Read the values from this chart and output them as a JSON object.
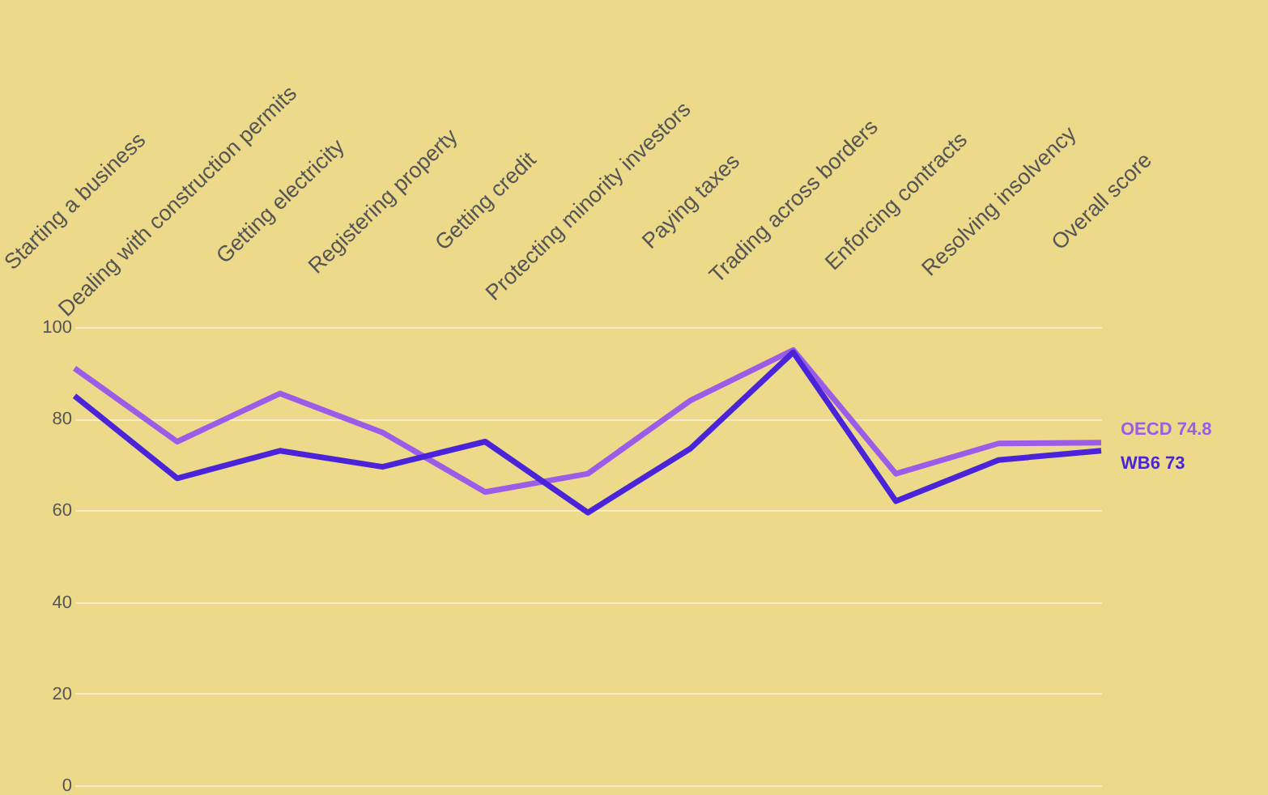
{
  "chart_data": {
    "type": "line",
    "categories": [
      "Starting a business",
      "Dealing with construction permits",
      "Getting electricity",
      "Registering property",
      "Getting credit",
      "Protecting minority investors",
      "Paying taxes",
      "Trading across borders",
      "Enforcing contracts",
      "Resolving insolvency",
      "Overall score"
    ],
    "series": [
      {
        "name": "OECD",
        "color": "#9b5ce8",
        "values": [
          91,
          75,
          85.5,
          77,
          64,
          68,
          84,
          95,
          68,
          74.6,
          74.8
        ],
        "value_labels": [
          null,
          null,
          null,
          null,
          null,
          null,
          null,
          null,
          null,
          null,
          "74.8"
        ]
      },
      {
        "name": "WB6",
        "color": "#4a24d8",
        "values": [
          85,
          67,
          73,
          69.5,
          75,
          59.5,
          73.5,
          94.5,
          62,
          71,
          73
        ],
        "value_labels": [
          null,
          null,
          null,
          null,
          null,
          null,
          null,
          null,
          null,
          null,
          "73"
        ]
      }
    ],
    "ylim": [
      0,
      100
    ],
    "yticks": [
      0,
      20,
      40,
      60,
      80,
      100
    ],
    "grid": "y",
    "marker": "none",
    "line_style": "solid"
  }
}
